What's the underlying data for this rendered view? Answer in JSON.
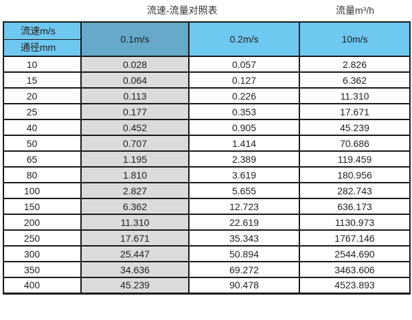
{
  "page": {
    "title": "流速-流量对照表",
    "unit_label": "流量m³/h"
  },
  "table": {
    "corner": {
      "top": "流速m/s",
      "bottom": "通径mm"
    },
    "velocity_columns": [
      "0.1m/s",
      "0.2m/s",
      "10m/s"
    ],
    "rows": [
      {
        "diameter": "10",
        "values": [
          "0.028",
          "0.057",
          "2.826"
        ]
      },
      {
        "diameter": "15",
        "values": [
          "0.064",
          "0.127",
          "6.362"
        ]
      },
      {
        "diameter": "20",
        "values": [
          "0.113",
          "0.226",
          "11.310"
        ]
      },
      {
        "diameter": "25",
        "values": [
          "0.177",
          "0.353",
          "17.671"
        ]
      },
      {
        "diameter": "40",
        "values": [
          "0.452",
          "0.905",
          "45.239"
        ]
      },
      {
        "diameter": "50",
        "values": [
          "0.707",
          "1.414",
          "70.686"
        ]
      },
      {
        "diameter": "65",
        "values": [
          "1.195",
          "2.389",
          "119.459"
        ]
      },
      {
        "diameter": "80",
        "values": [
          "1.810",
          "3.619",
          "180.956"
        ]
      },
      {
        "diameter": "100",
        "values": [
          "2.827",
          "5.655",
          "282.743"
        ]
      },
      {
        "diameter": "150",
        "values": [
          "6.362",
          "12.723",
          "636.173"
        ]
      },
      {
        "diameter": "200",
        "values": [
          "11.310",
          "22.619",
          "1130.973"
        ]
      },
      {
        "diameter": "250",
        "values": [
          "17.671",
          "35.343",
          "1767.146"
        ]
      },
      {
        "diameter": "300",
        "values": [
          "25.447",
          "50.894",
          "2544.690"
        ]
      },
      {
        "diameter": "350",
        "values": [
          "34.636",
          "69.272",
          "3463.606"
        ]
      },
      {
        "diameter": "400",
        "values": [
          "45.239",
          "90.478",
          "4523.893"
        ]
      }
    ]
  },
  "colors": {
    "header_blue": "#6EC8F0",
    "header_blue_dark": "#66A9C9",
    "col_gray": "#DBDBDB",
    "border": "#1A1A1A"
  },
  "chart_data": {
    "type": "table",
    "title": "流速-流量对照表",
    "unit_label": "流量m³/h",
    "column_header": "流速m/s",
    "row_header": "通径mm",
    "columns": [
      "0.1m/s",
      "0.2m/s",
      "10m/s"
    ],
    "diameters_mm": [
      10,
      15,
      20,
      25,
      40,
      50,
      65,
      80,
      100,
      150,
      200,
      250,
      300,
      350,
      400
    ],
    "series": [
      {
        "name": "0.1m/s",
        "values": [
          0.028,
          0.064,
          0.113,
          0.177,
          0.452,
          0.707,
          1.195,
          1.81,
          2.827,
          6.362,
          11.31,
          17.671,
          25.447,
          34.636,
          45.239
        ]
      },
      {
        "name": "0.2m/s",
        "values": [
          0.057,
          0.127,
          0.226,
          0.353,
          0.905,
          1.414,
          2.389,
          3.619,
          5.655,
          12.723,
          22.619,
          35.343,
          50.894,
          69.272,
          90.478
        ]
      },
      {
        "name": "10m/s",
        "values": [
          2.826,
          6.362,
          11.31,
          17.671,
          45.239,
          70.686,
          119.459,
          180.956,
          282.743,
          636.173,
          1130.973,
          1767.146,
          2544.69,
          3463.606,
          4523.893
        ]
      }
    ]
  }
}
